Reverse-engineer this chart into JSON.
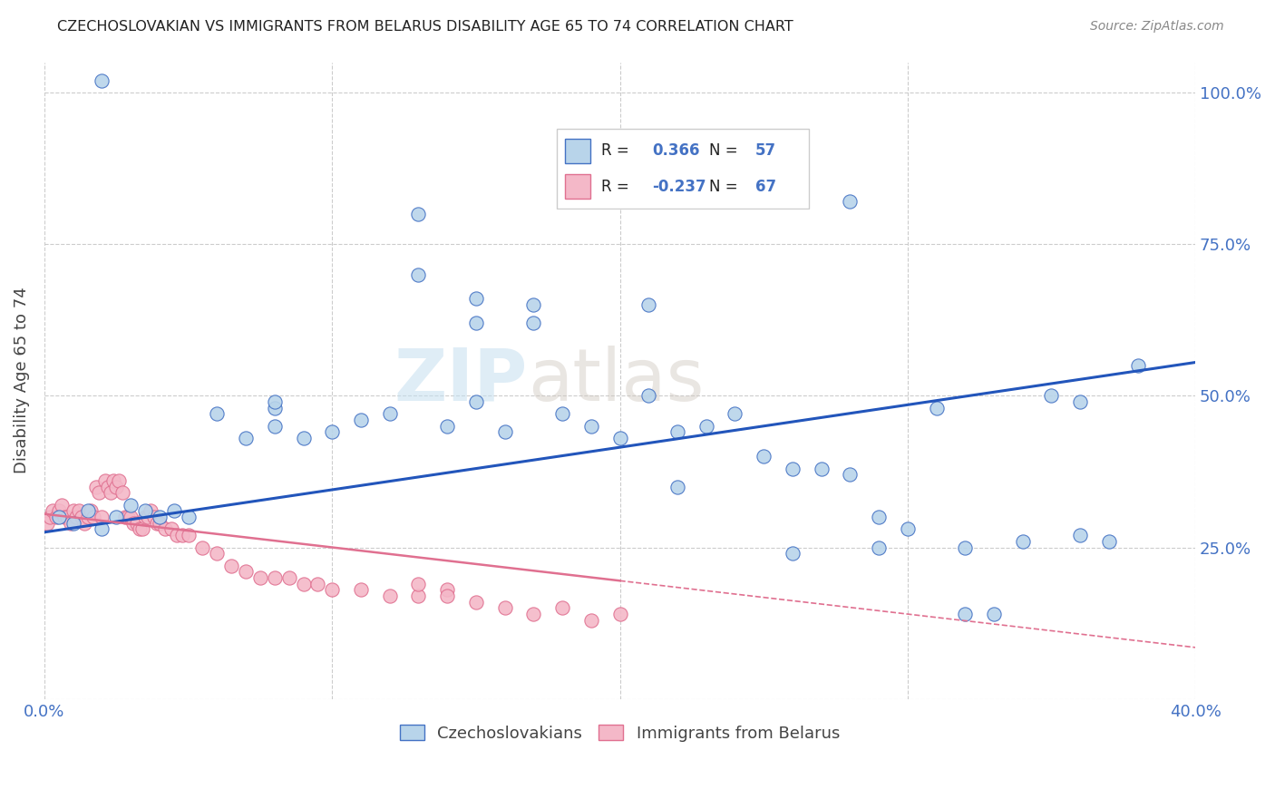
{
  "title": "CZECHOSLOVAKIAN VS IMMIGRANTS FROM BELARUS DISABILITY AGE 65 TO 74 CORRELATION CHART",
  "source": "Source: ZipAtlas.com",
  "ylabel": "Disability Age 65 to 74",
  "xlim": [
    0.0,
    0.4
  ],
  "ylim": [
    0.0,
    1.05
  ],
  "xticks": [
    0.0,
    0.1,
    0.2,
    0.3,
    0.4
  ],
  "xticklabels": [
    "0.0%",
    "",
    "",
    "",
    "40.0%"
  ],
  "yticks": [
    0.0,
    0.25,
    0.5,
    0.75,
    1.0
  ],
  "yticklabels": [
    "",
    "25.0%",
    "50.0%",
    "75.0%",
    "100.0%"
  ],
  "blue_fill": "#b8d4ea",
  "blue_edge": "#4472c4",
  "pink_fill": "#f4b8c8",
  "pink_edge": "#e07090",
  "pink_line_color": "#e07090",
  "blue_line_color": "#2255bb",
  "r_blue": 0.366,
  "n_blue": 57,
  "r_pink": -0.237,
  "n_pink": 67,
  "legend_label_blue": "Czechoslovakians",
  "legend_label_pink": "Immigrants from Belarus",
  "watermark_zip": "ZIP",
  "watermark_atlas": "atlas",
  "blue_scatter_x": [
    0.005,
    0.01,
    0.015,
    0.02,
    0.025,
    0.03,
    0.035,
    0.04,
    0.045,
    0.05,
    0.06,
    0.07,
    0.08,
    0.09,
    0.1,
    0.11,
    0.12,
    0.13,
    0.14,
    0.15,
    0.16,
    0.17,
    0.18,
    0.19,
    0.2,
    0.21,
    0.22,
    0.23,
    0.24,
    0.25,
    0.26,
    0.27,
    0.28,
    0.29,
    0.3,
    0.31,
    0.32,
    0.33,
    0.34,
    0.35,
    0.36,
    0.37,
    0.38,
    0.13,
    0.15,
    0.17,
    0.08,
    0.22,
    0.26,
    0.29,
    0.32,
    0.36,
    0.08,
    0.28,
    0.02,
    0.21,
    0.15
  ],
  "blue_scatter_y": [
    0.3,
    0.29,
    0.31,
    0.28,
    0.3,
    0.32,
    0.31,
    0.3,
    0.31,
    0.3,
    0.47,
    0.43,
    0.45,
    0.43,
    0.44,
    0.46,
    0.47,
    0.7,
    0.45,
    0.62,
    0.44,
    0.65,
    0.47,
    0.45,
    0.43,
    0.65,
    0.44,
    0.45,
    0.47,
    0.4,
    0.38,
    0.38,
    0.37,
    0.3,
    0.28,
    0.48,
    0.14,
    0.14,
    0.26,
    0.5,
    0.49,
    0.26,
    0.55,
    0.8,
    0.66,
    0.62,
    0.48,
    0.35,
    0.24,
    0.25,
    0.25,
    0.27,
    0.49,
    0.82,
    1.02,
    0.5,
    0.49
  ],
  "pink_scatter_x": [
    0.001,
    0.002,
    0.003,
    0.004,
    0.005,
    0.006,
    0.007,
    0.008,
    0.009,
    0.01,
    0.011,
    0.012,
    0.013,
    0.014,
    0.015,
    0.016,
    0.017,
    0.018,
    0.019,
    0.02,
    0.021,
    0.022,
    0.023,
    0.024,
    0.025,
    0.026,
    0.027,
    0.028,
    0.029,
    0.03,
    0.031,
    0.032,
    0.033,
    0.034,
    0.035,
    0.036,
    0.037,
    0.038,
    0.039,
    0.04,
    0.042,
    0.044,
    0.046,
    0.048,
    0.05,
    0.055,
    0.06,
    0.065,
    0.07,
    0.075,
    0.08,
    0.085,
    0.09,
    0.095,
    0.1,
    0.11,
    0.12,
    0.13,
    0.14,
    0.15,
    0.16,
    0.17,
    0.18,
    0.19,
    0.2,
    0.13,
    0.14
  ],
  "pink_scatter_y": [
    0.29,
    0.3,
    0.31,
    0.3,
    0.31,
    0.32,
    0.3,
    0.3,
    0.29,
    0.31,
    0.3,
    0.31,
    0.3,
    0.29,
    0.3,
    0.31,
    0.3,
    0.35,
    0.34,
    0.3,
    0.36,
    0.35,
    0.34,
    0.36,
    0.35,
    0.36,
    0.34,
    0.3,
    0.3,
    0.3,
    0.29,
    0.29,
    0.28,
    0.28,
    0.3,
    0.3,
    0.31,
    0.3,
    0.29,
    0.29,
    0.28,
    0.28,
    0.27,
    0.27,
    0.27,
    0.25,
    0.24,
    0.22,
    0.21,
    0.2,
    0.2,
    0.2,
    0.19,
    0.19,
    0.18,
    0.18,
    0.17,
    0.17,
    0.18,
    0.16,
    0.15,
    0.14,
    0.15,
    0.13,
    0.14,
    0.19,
    0.17
  ],
  "blue_line_x0": 0.0,
  "blue_line_y0": 0.275,
  "blue_line_x1": 0.4,
  "blue_line_y1": 0.555,
  "pink_line_solid_x0": 0.0,
  "pink_line_solid_y0": 0.305,
  "pink_line_solid_x1": 0.2,
  "pink_line_solid_y1": 0.195,
  "pink_line_dash_x0": 0.2,
  "pink_line_dash_y0": 0.195,
  "pink_line_dash_x1": 0.4,
  "pink_line_dash_y1": 0.085
}
